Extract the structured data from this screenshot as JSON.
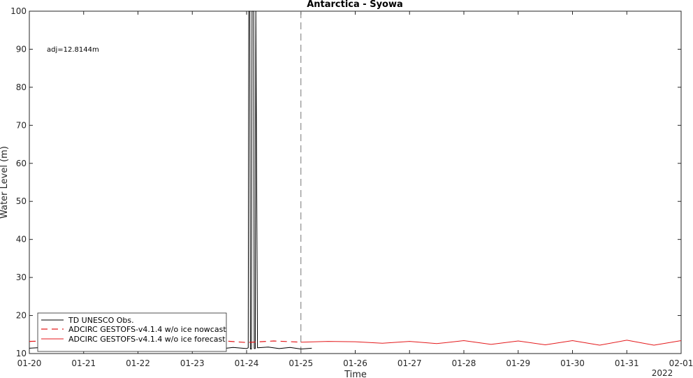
{
  "chart_data": {
    "type": "line",
    "title": "Antarctica - Syowa",
    "xlabel": "Time",
    "ylabel": "Water Level (m)",
    "year_label": "2022",
    "annotation": "adj=12.8144m",
    "xlim": [
      "01-20",
      "02-01"
    ],
    "ylim": [
      10,
      100
    ],
    "yticks": [
      10,
      20,
      30,
      40,
      50,
      60,
      70,
      80,
      90,
      100
    ],
    "xtick_labels": [
      "01-20",
      "01-21",
      "01-22",
      "01-23",
      "01-24",
      "01-25",
      "01-26",
      "01-27",
      "01-28",
      "01-29",
      "01-30",
      "01-31",
      "02-01"
    ],
    "nowcast_forecast_boundary_day": 5,
    "series": [
      {
        "name": "TD UNESCO Obs.",
        "color": "#000000",
        "style": "solid",
        "x": [
          0,
          0.25,
          0.5,
          0.75,
          1.0,
          1.25,
          1.5,
          1.75,
          2.0,
          2.25,
          2.5,
          2.75,
          3.0,
          3.25,
          3.5,
          3.75,
          4.0,
          4.03,
          4.04,
          4.06,
          4.07,
          4.09,
          4.1,
          4.13,
          4.14,
          4.16,
          4.17,
          4.2,
          4.4,
          4.6,
          4.8,
          5.0,
          5.2
        ],
        "y": [
          11.4,
          11.6,
          10.8,
          11.6,
          11.4,
          11.5,
          10.9,
          11.5,
          11.5,
          11.2,
          11.0,
          11.6,
          11.5,
          11.0,
          11.2,
          11.6,
          11.3,
          11.5,
          100,
          100,
          11.2,
          11.2,
          100,
          100,
          11.3,
          11.3,
          100,
          11.5,
          11.7,
          11.3,
          11.6,
          11.2,
          11.4
        ]
      },
      {
        "name": "ADCIRC GESTOFS-v4.1.4 w/o ice nowcast",
        "color": "#e41a1c",
        "style": "dashed",
        "x": [
          0,
          0.5,
          1.0,
          1.5,
          2.0,
          2.5,
          3.0,
          3.5,
          4.0,
          4.5,
          5.0
        ],
        "y": [
          13.2,
          13.4,
          13.1,
          13.3,
          13.0,
          13.3,
          13.1,
          13.4,
          12.9,
          13.3,
          13.0
        ]
      },
      {
        "name": "ADCIRC GESTOFS-v4.1.4 w/o ice forecast",
        "color": "#e41a1c",
        "style": "solid",
        "x": [
          5.0,
          5.5,
          6.0,
          6.5,
          7.0,
          7.5,
          8.0,
          8.5,
          9.0,
          9.5,
          10.0,
          10.5,
          11.0,
          11.5,
          12.0
        ],
        "y": [
          13.0,
          13.2,
          13.1,
          12.7,
          13.2,
          12.6,
          13.4,
          12.4,
          13.3,
          12.3,
          13.4,
          12.2,
          13.5,
          12.2,
          13.4
        ]
      }
    ],
    "legend_position": "bottom-left",
    "grid": false
  }
}
